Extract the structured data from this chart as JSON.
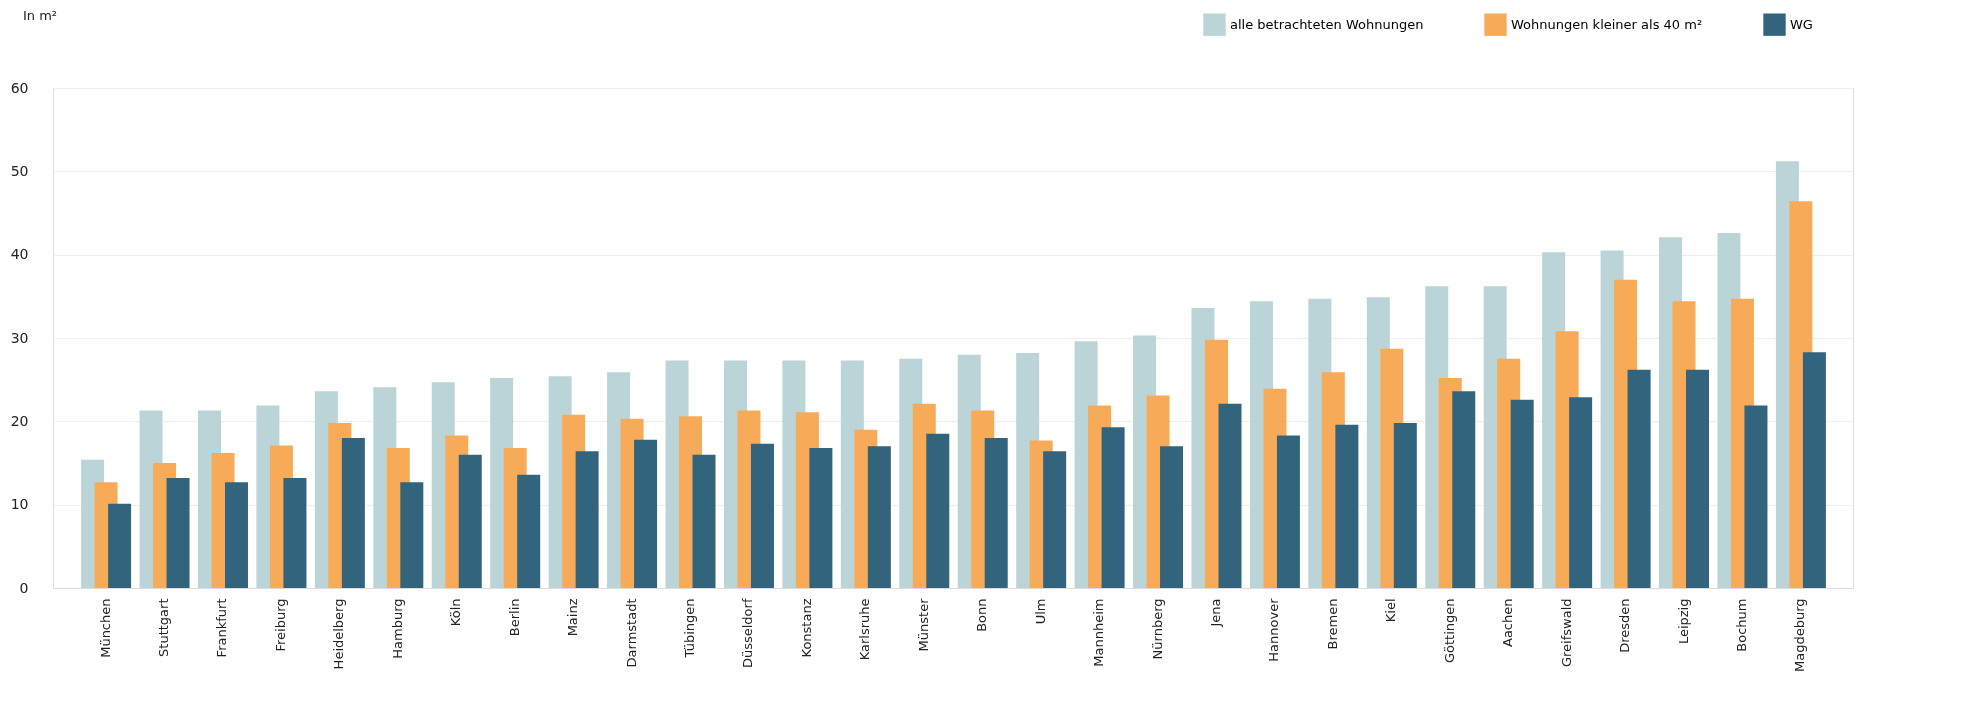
{
  "chart_data": {
    "type": "bar",
    "ylabel": "In m²",
    "categories": [
      "München",
      "Stuttgart",
      "Frankfurt",
      "Freiburg",
      "Heidelberg",
      "Hamburg",
      "Köln",
      "Berlin",
      "Mainz",
      "Darmstadt",
      "Tübingen",
      "Düsseldorf",
      "Konstanz",
      "Karlsruhe",
      "Münster",
      "Bonn",
      "Ulm",
      "Mannheim",
      "Nürnberg",
      "Jena",
      "Hannover",
      "Bremen",
      "Kiel",
      "Göttingen",
      "Aachen",
      "Greifswald",
      "Dresden",
      "Leipzig",
      "Bochum",
      "Magdeburg"
    ],
    "series": [
      {
        "name": "alle betrachteten Wohnungen",
        "color": "#bbd4d7",
        "values": [
          15.4,
          21.3,
          21.3,
          21.9,
          23.6,
          24.1,
          24.7,
          25.2,
          25.4,
          25.9,
          27.3,
          27.3,
          27.3,
          27.3,
          27.5,
          28.0,
          28.2,
          29.6,
          30.3,
          33.6,
          34.4,
          34.7,
          34.9,
          36.2,
          36.2,
          40.3,
          40.5,
          42.1,
          42.6,
          51.2
        ]
      },
      {
        "name": "Wohnungen kleiner als 40 m²",
        "color": "#f7ab59",
        "values": [
          12.7,
          15.0,
          16.2,
          17.1,
          19.8,
          16.8,
          18.3,
          16.8,
          20.8,
          20.3,
          20.6,
          21.3,
          21.1,
          19.0,
          22.1,
          21.3,
          17.7,
          21.9,
          23.1,
          29.8,
          23.9,
          25.9,
          28.7,
          25.2,
          27.5,
          30.8,
          37.0,
          34.4,
          34.7,
          46.4
        ]
      },
      {
        "name": "WG",
        "color": "#33647d",
        "values": [
          10.1,
          13.2,
          12.7,
          13.2,
          18.0,
          12.7,
          16.0,
          13.6,
          16.4,
          17.8,
          16.0,
          17.3,
          16.8,
          17.0,
          18.5,
          18.0,
          16.4,
          19.3,
          17.0,
          22.1,
          18.3,
          19.6,
          19.8,
          23.6,
          22.6,
          22.9,
          26.2,
          26.2,
          21.9,
          28.3
        ]
      }
    ],
    "ylim": [
      0,
      60
    ],
    "yticks": [
      0,
      10,
      20,
      30,
      40,
      50,
      60
    ],
    "grid": "y",
    "legend": "top right"
  }
}
